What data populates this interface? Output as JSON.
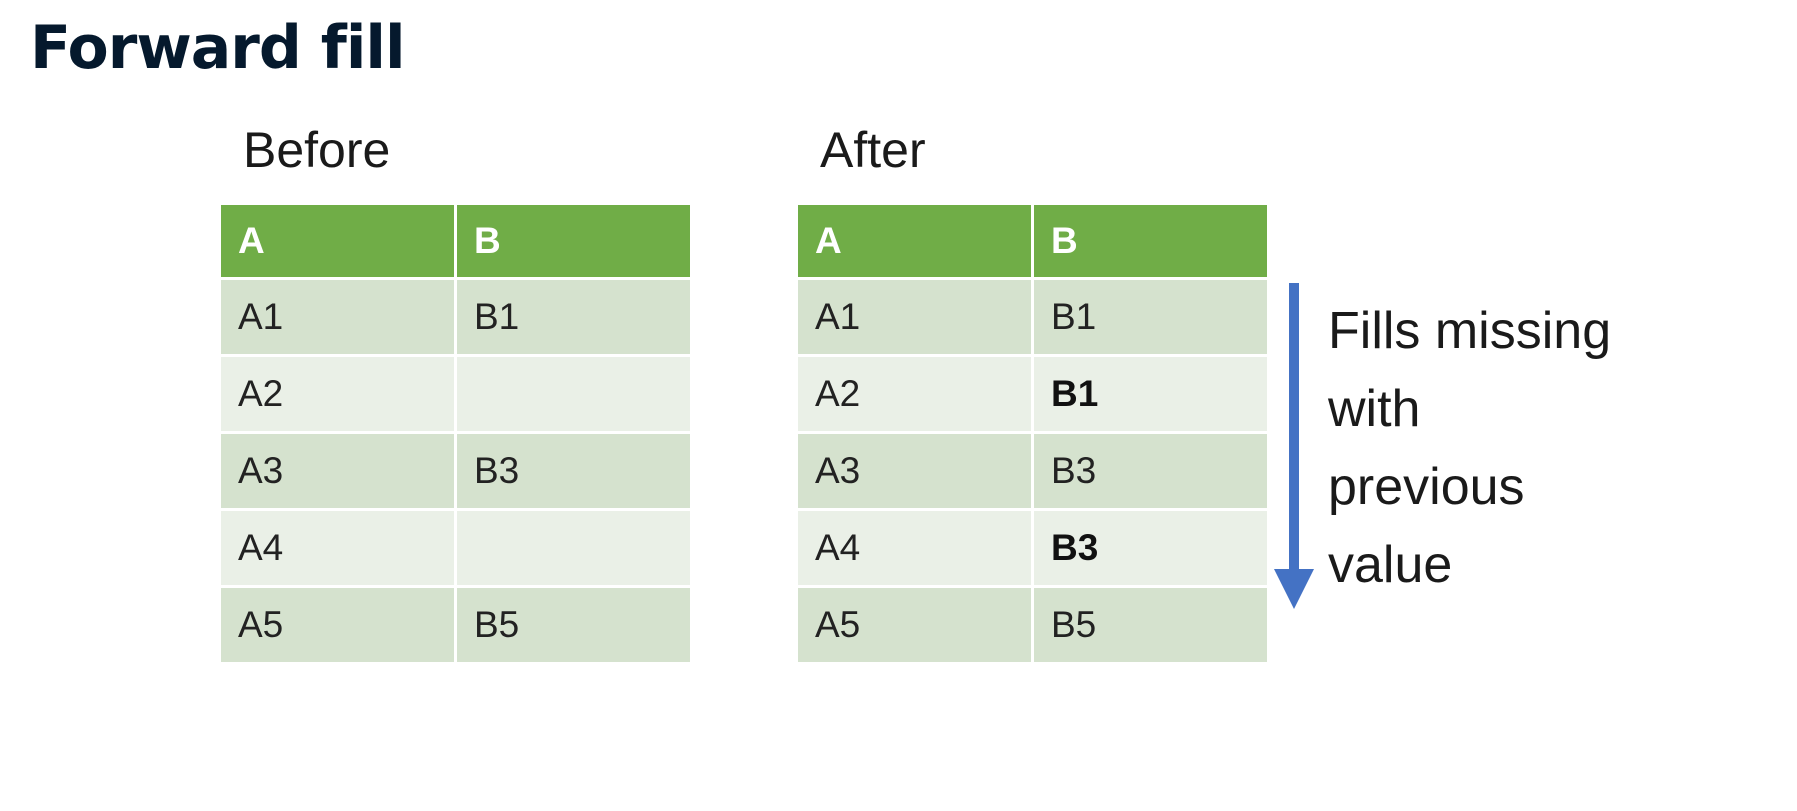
{
  "title": "Forward fill",
  "before": {
    "caption": "Before",
    "headers": [
      "A",
      "B"
    ],
    "rows": [
      [
        "A1",
        "B1"
      ],
      [
        "A2",
        ""
      ],
      [
        "A3",
        "B3"
      ],
      [
        "A4",
        ""
      ],
      [
        "A5",
        "B5"
      ]
    ]
  },
  "after": {
    "caption": "After",
    "headers": [
      "A",
      "B"
    ],
    "rows": [
      [
        "A1",
        "B1"
      ],
      [
        "A2",
        "B1"
      ],
      [
        "A3",
        "B3"
      ],
      [
        "A4",
        "B3"
      ],
      [
        "A5",
        "B5"
      ]
    ],
    "filled_cells": [
      [
        1,
        1
      ],
      [
        3,
        1
      ]
    ]
  },
  "annotation": {
    "lines": [
      "Fills missing",
      "with",
      "previous",
      "value"
    ]
  },
  "colors": {
    "title": "#05192d",
    "header_bg": "#70ad47",
    "row_dark": "#d5e2ce",
    "row_light": "#eaf0e7",
    "arrow": "#4472c4"
  },
  "icons": {
    "arrow": "arrow-down-icon"
  }
}
